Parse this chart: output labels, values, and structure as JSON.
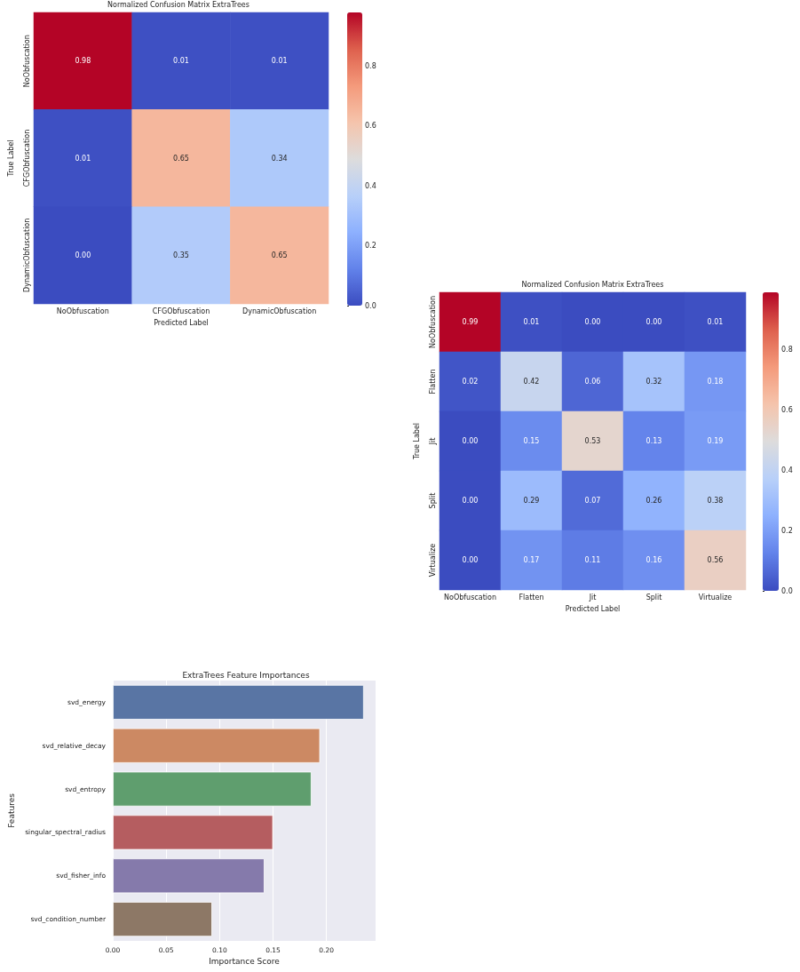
{
  "chart_data": [
    {
      "type": "heatmap",
      "title": "Normalized Confusion Matrix ExtraTrees",
      "xlabel": "Predicted Label",
      "ylabel": "True Label",
      "categories": [
        "NoObfuscation",
        "CFGObfuscation",
        "DynamicObfuscation"
      ],
      "y_categories": [
        "NoObfuscation",
        "CFGObfuscation",
        "DynamicObfuscation"
      ],
      "cells": [
        [
          0.98,
          0.01,
          0.01
        ],
        [
          0.01,
          0.65,
          0.34
        ],
        [
          0.0,
          0.35,
          0.65
        ]
      ],
      "cell_labels": [
        [
          "0.98",
          "0.01",
          "0.01"
        ],
        [
          "0.01",
          "0.65",
          "0.34"
        ],
        [
          "0.00",
          "0.35",
          "0.65"
        ]
      ],
      "clim": [
        0,
        0.98
      ],
      "cticks": [
        {
          "value": 0,
          "label": "0.0"
        },
        {
          "value": 0.2,
          "label": "0.2"
        },
        {
          "value": 0.4,
          "label": "0.4"
        },
        {
          "value": 0.6,
          "label": "0.6"
        },
        {
          "value": 0.8,
          "label": "0.8"
        }
      ]
    },
    {
      "type": "heatmap",
      "title": "Normalized Confusion Matrix ExtraTrees",
      "xlabel": "Predicted Label",
      "ylabel": "True Label",
      "categories": [
        "NoObfuscation",
        "Flatten",
        "Jit",
        "Split",
        "Virtualize"
      ],
      "y_categories": [
        "NoObfuscation",
        "Flatten",
        "Jit",
        "Split",
        "Virtualize"
      ],
      "cells": [
        [
          0.99,
          0.01,
          0.0,
          0.0,
          0.01
        ],
        [
          0.02,
          0.42,
          0.06,
          0.32,
          0.18
        ],
        [
          0.0,
          0.15,
          0.53,
          0.13,
          0.19
        ],
        [
          0.0,
          0.29,
          0.07,
          0.26,
          0.38
        ],
        [
          0.0,
          0.17,
          0.11,
          0.16,
          0.56
        ]
      ],
      "cell_labels": [
        [
          "0.99",
          "0.01",
          "0.00",
          "0.00",
          "0.01"
        ],
        [
          "0.02",
          "0.42",
          "0.06",
          "0.32",
          "0.18"
        ],
        [
          "0.00",
          "0.15",
          "0.53",
          "0.13",
          "0.19"
        ],
        [
          "0.00",
          "0.29",
          "0.07",
          "0.26",
          "0.38"
        ],
        [
          "0.00",
          "0.17",
          "0.11",
          "0.16",
          "0.56"
        ]
      ],
      "clim": [
        0,
        0.99
      ],
      "cticks": [
        {
          "value": 0,
          "label": "0.0"
        },
        {
          "value": 0.2,
          "label": "0.2"
        },
        {
          "value": 0.4,
          "label": "0.4"
        },
        {
          "value": 0.6,
          "label": "0.6"
        },
        {
          "value": 0.8,
          "label": "0.8"
        }
      ]
    },
    {
      "type": "bar",
      "orientation": "horizontal",
      "title": "ExtraTrees Feature Importances",
      "xlabel": "Importance Score",
      "ylabel": "Features",
      "categories": [
        "svd_energy",
        "svd_relative_decay",
        "svd_entropy",
        "singular_spectral_radius",
        "svd_fisher_info",
        "svd_condition_number"
      ],
      "values": [
        0.235,
        0.194,
        0.186,
        0.15,
        0.142,
        0.093
      ],
      "colors": [
        "#5975a4",
        "#cc8963",
        "#5f9e6e",
        "#b55d60",
        "#857aab",
        "#8d7866"
      ],
      "xlim": [
        0,
        0.246
      ],
      "xticks": [
        {
          "value": 0,
          "label": "0.00"
        },
        {
          "value": 0.05,
          "label": "0.05"
        },
        {
          "value": 0.1,
          "label": "0.10"
        },
        {
          "value": 0.15,
          "label": "0.15"
        },
        {
          "value": 0.2,
          "label": "0.20"
        }
      ],
      "grid": "x"
    }
  ]
}
